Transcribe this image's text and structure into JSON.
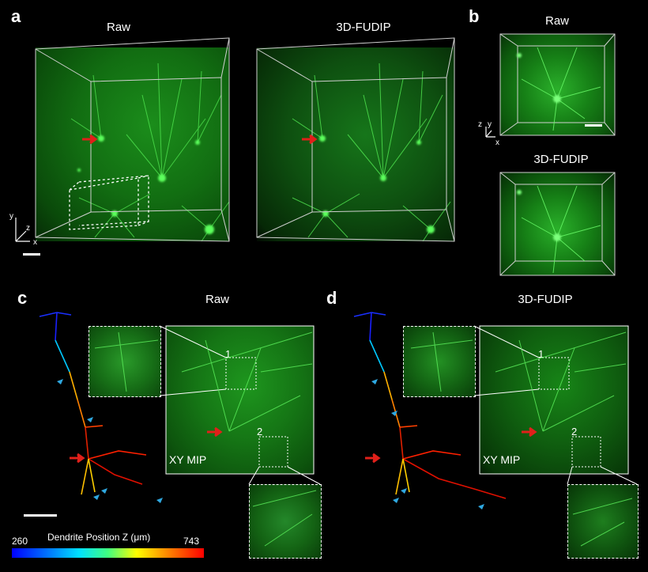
{
  "panels": {
    "a": {
      "letter": "a",
      "left_title": "Raw",
      "right_title": "3D-FUDIP",
      "axes": {
        "y": "y",
        "z": "z",
        "x": "x"
      }
    },
    "b": {
      "letter": "b",
      "top_title": "Raw",
      "bottom_title": "3D-FUDIP",
      "axes": {
        "z": "z",
        "y": "y",
        "x": "x"
      }
    },
    "c": {
      "letter": "c",
      "title": "Raw",
      "mip_label": "XY MIP",
      "roi_1": "1",
      "roi_2": "2"
    },
    "d": {
      "letter": "d",
      "title": "3D-FUDIP",
      "mip_label": "XY MIP",
      "roi_1": "1",
      "roi_2": "2"
    }
  },
  "colorbar": {
    "label": "Dendrite Position Z  (μm)",
    "min": "260",
    "max": "743",
    "colors": [
      "#0000ff",
      "#00e0ff",
      "#ffff00",
      "#ff0000"
    ]
  },
  "colors": {
    "fluorescence": "#1fbf1f",
    "marker_red": "#e0201a",
    "marker_cyan": "#2fa8e0"
  }
}
